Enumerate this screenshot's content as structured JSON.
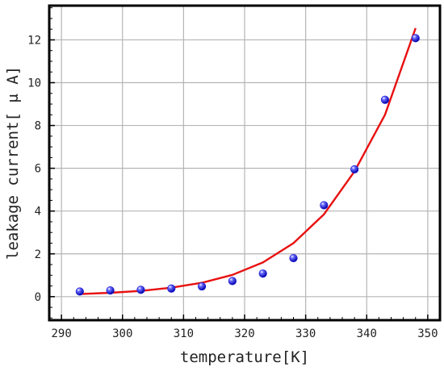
{
  "chart_data": {
    "type": "scatter",
    "xlabel": "temperature[K]",
    "ylabel": "leakage current[ μ A]",
    "xlim": [
      288,
      352
    ],
    "ylim": [
      -1.1,
      13.6
    ],
    "x_ticks": [
      290,
      300,
      310,
      320,
      330,
      340,
      350
    ],
    "y_ticks": [
      0,
      2,
      4,
      6,
      8,
      10,
      12
    ],
    "grid": true,
    "series": [
      {
        "kind": "points",
        "color": "#1f1fd6",
        "x": [
          293,
          298,
          303,
          308,
          313,
          318,
          323,
          328,
          333,
          338,
          343,
          348
        ],
        "y": [
          0.24,
          0.29,
          0.32,
          0.38,
          0.48,
          0.73,
          1.08,
          1.8,
          4.27,
          5.95,
          9.2,
          12.08
        ]
      },
      {
        "kind": "line",
        "color": "#e81010",
        "x": [
          293,
          298,
          303,
          308,
          313,
          318,
          323,
          328,
          333,
          338,
          343,
          348
        ],
        "y": [
          0.12,
          0.18,
          0.27,
          0.42,
          0.65,
          1.02,
          1.6,
          2.5,
          3.85,
          5.85,
          8.5,
          12.55
        ]
      }
    ]
  }
}
